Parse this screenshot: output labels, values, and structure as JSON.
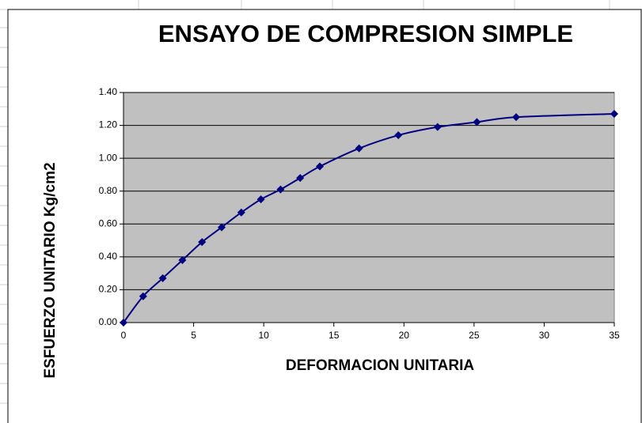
{
  "chart_data": {
    "type": "line",
    "title": "ENSAYO DE COMPRESION SIMPLE",
    "x_label": "DEFORMACION UNITARIA",
    "y_label": "ESFUERZO UNITARIO Kg/cm2",
    "x": [
      0,
      1.4,
      2.8,
      4.2,
      5.6,
      7.0,
      8.4,
      9.8,
      11.2,
      12.6,
      14.0,
      16.8,
      19.6,
      22.4,
      25.2,
      28.0,
      35.0
    ],
    "values": [
      0,
      0.16,
      0.27,
      0.38,
      0.49,
      0.58,
      0.67,
      0.75,
      0.81,
      0.88,
      0.95,
      1.06,
      1.14,
      1.19,
      1.22,
      1.25,
      1.27
    ],
    "color": "#000080",
    "smooth": true,
    "xlim": [
      0,
      35
    ],
    "xticks": [
      0,
      5,
      10,
      15,
      20,
      25,
      30,
      35
    ],
    "ylim": [
      0,
      1.4
    ],
    "yticks": [
      {
        "value": 0,
        "label": "0.00"
      },
      {
        "value": 0.2,
        "label": "0.20"
      },
      {
        "value": 0.4,
        "label": "0.40"
      },
      {
        "value": 0.6,
        "label": "0.60"
      },
      {
        "value": 0.8,
        "label": "0.80"
      },
      {
        "value": 1.0,
        "label": "1.00"
      },
      {
        "value": 1.2,
        "label": "1.20"
      },
      {
        "value": 1.4,
        "label": "1.40"
      }
    ],
    "grid": true,
    "plot_background": "#c0c0c0"
  }
}
